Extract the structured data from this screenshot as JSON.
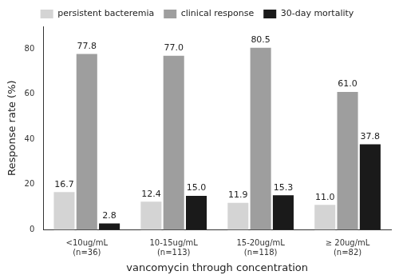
{
  "chart_data": {
    "type": "bar",
    "x_label": "vancomycin through concentration",
    "y_label": "Response rate (%)",
    "categories": [
      "<10ug/mL\n(n=36)",
      "10-15ug/mL\n(n=113)",
      "15-20ug/mL\n(n=118)",
      "≥ 20ug/mL\n(n=82)"
    ],
    "series": [
      {
        "name": "persistent bacteremia",
        "color": "#d4d4d4",
        "values": [
          16.7,
          12.4,
          11.9,
          11.0
        ],
        "value_labels": [
          "16.7",
          "12.4",
          "11.9",
          "11.0"
        ]
      },
      {
        "name": "clinical response",
        "color": "#9e9e9e",
        "values": [
          77.8,
          77.0,
          80.5,
          61.0
        ],
        "value_labels": [
          "77.8",
          "77.0",
          "80.5",
          "61.0"
        ]
      },
      {
        "name": "30-day mortality",
        "color": "#1a1a1a",
        "values": [
          2.8,
          15.0,
          15.3,
          37.8
        ],
        "value_labels": [
          "2.8",
          "15.0",
          "15.3",
          "37.8"
        ]
      }
    ],
    "ylim": [
      0,
      90
    ],
    "yticks": [
      0,
      20,
      40,
      60,
      80
    ],
    "grid": false,
    "legend": "top",
    "data_labels": true
  }
}
